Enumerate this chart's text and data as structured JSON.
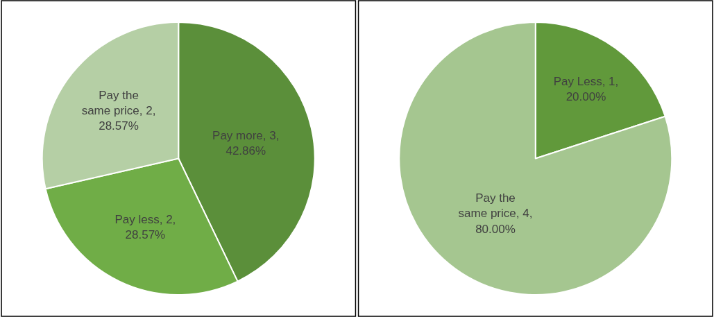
{
  "chart_data": [
    {
      "type": "pie",
      "categories": [
        "Pay more",
        "Pay less",
        "Pay the same price"
      ],
      "values": [
        42.86,
        28.57,
        28.57
      ],
      "value_labels": [
        "3, 42.86%",
        "2, 28.57%",
        "2, 28.57%"
      ],
      "colors": [
        "#5b8f3a",
        "#70ad47",
        "#b5cfa5"
      ]
    },
    {
      "type": "pie",
      "categories": [
        "Pay Less",
        "Pay the same price"
      ],
      "values": [
        20.0,
        80.0
      ],
      "value_labels": [
        "1, 20.00%",
        "4, 80.00%"
      ],
      "colors": [
        "#61993b",
        "#a5c690"
      ]
    }
  ]
}
